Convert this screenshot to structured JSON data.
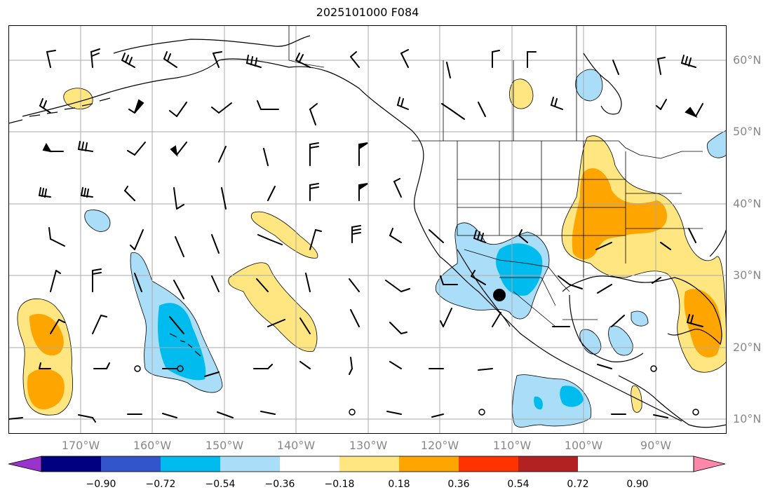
{
  "title": "2025101000 F084",
  "lat_labels": [
    "60°N",
    "50°N",
    "40°N",
    "30°N",
    "20°N",
    "10°N"
  ],
  "lon_labels": [
    "170°W",
    "160°W",
    "150°W",
    "140°W",
    "130°W",
    "120°W",
    "110°W",
    "100°W",
    "90°W"
  ],
  "colorbar": {
    "labels": [
      "−0.90",
      "−0.72",
      "−0.54",
      "−0.36",
      "−0.18",
      "0.18",
      "0.36",
      "0.54",
      "0.72",
      "0.90"
    ],
    "colors": [
      "#9933cc",
      "#000080",
      "#3355cc",
      "#00bbee",
      "#aaddf8",
      "#ffffff",
      "#ffe680",
      "#ffa500",
      "#ff3300",
      "#b22222",
      "#ff88aa"
    ]
  },
  "colors": {
    "frame": "#000000",
    "grid": "#aaaaaa",
    "coast": "#000000",
    "marker": "#000000"
  }
}
